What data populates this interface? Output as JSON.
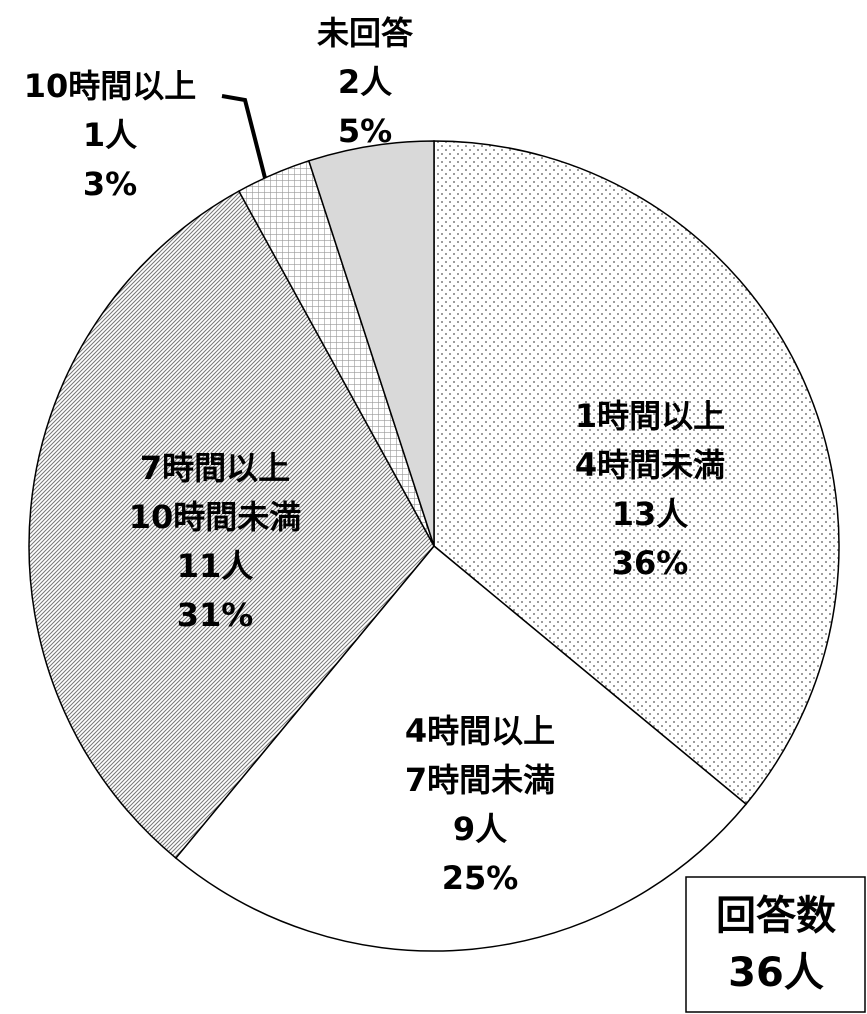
{
  "chart_data": {
    "type": "pie",
    "categories": [
      [
        "1時間以上",
        "4時間未満"
      ],
      [
        "4時間以上",
        "7時間未満"
      ],
      [
        "7時間以上",
        "10時間未満"
      ],
      [
        "10時間以上"
      ],
      [
        "未回答"
      ]
    ],
    "values": [
      36,
      25,
      31,
      3,
      5
    ],
    "value_labels": [
      "36%",
      "25%",
      "31%",
      "3%",
      "5%"
    ],
    "count_labels": [
      "13人",
      "9人",
      "11人",
      "1人",
      "2人"
    ],
    "fills": [
      "dots",
      "white",
      "hatch",
      "grid",
      "#d9d9d9"
    ],
    "total_label": [
      "回答数",
      "36人"
    ]
  }
}
